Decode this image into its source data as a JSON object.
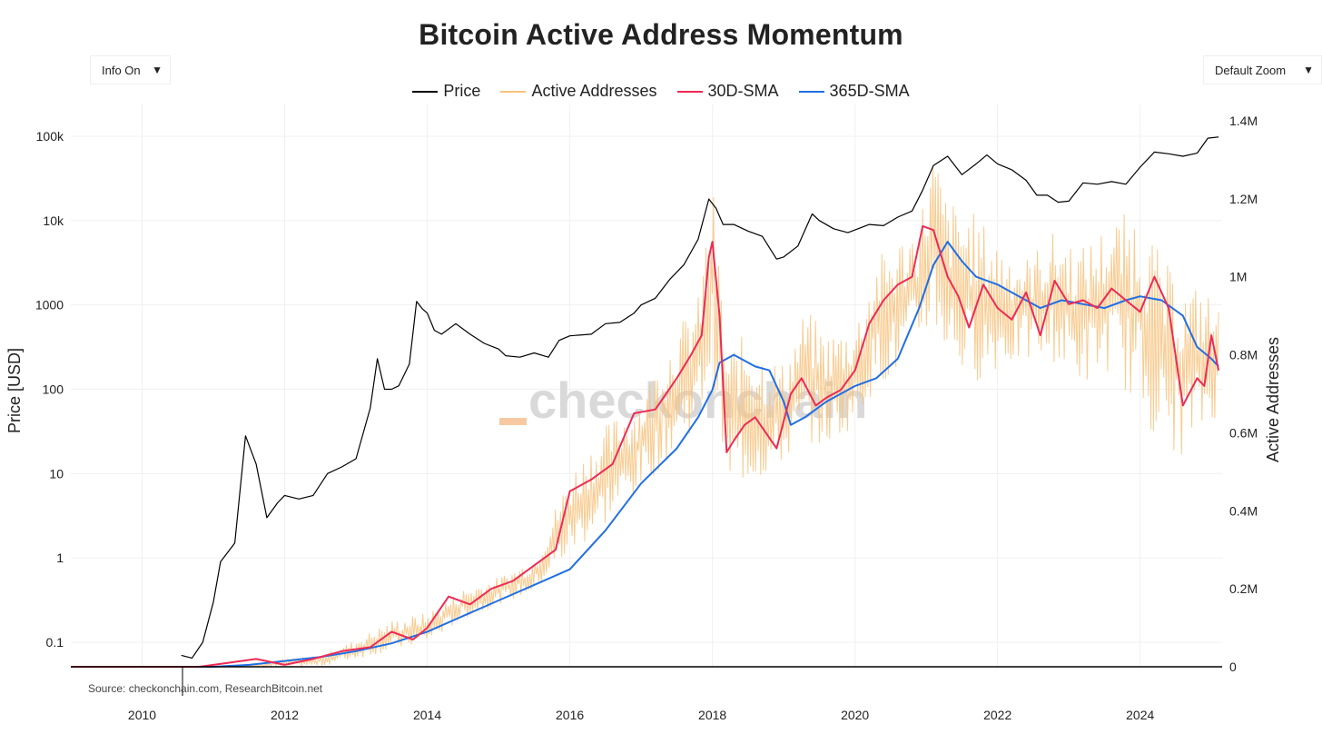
{
  "title": "Bitcoin Active Address Momentum",
  "controls": {
    "info_label": "Info On",
    "zoom_label": "Default Zoom"
  },
  "source": "Source: checkonchain.com, ResearchBitcoin.net",
  "watermark": "checkonchain",
  "colors": {
    "price": "#000000",
    "active_addresses": "#f7c27d",
    "sma30": "#ee2a55",
    "sma365": "#1f6fe5",
    "watermark_accent": "#f7c9a2"
  },
  "chart_data": {
    "type": "line",
    "legend_position": "top-center",
    "grid": true,
    "x_axis": {
      "ticks": [
        "2010",
        "2012",
        "2014",
        "2016",
        "2018",
        "2020",
        "2022",
        "2024"
      ],
      "range": [
        2009.0,
        2025.15
      ]
    },
    "y_left": {
      "label": "Price [USD]",
      "scale": "log",
      "range": [
        0.05,
        200000
      ],
      "ticks": [
        {
          "value": 0.1,
          "label": "0.1"
        },
        {
          "value": 1,
          "label": "1"
        },
        {
          "value": 10,
          "label": "10"
        },
        {
          "value": 100,
          "label": "100"
        },
        {
          "value": 1000,
          "label": "1000"
        },
        {
          "value": 10000,
          "label": "10k"
        },
        {
          "value": 100000,
          "label": "100k"
        }
      ]
    },
    "y_right": {
      "label": "Active Addresses",
      "scale": "linear",
      "range": [
        0,
        1400000
      ],
      "ticks": [
        {
          "value": 0,
          "label": "0"
        },
        {
          "value": 200000,
          "label": "0.2M"
        },
        {
          "value": 400000,
          "label": "0.4M"
        },
        {
          "value": 600000,
          "label": "0.6M"
        },
        {
          "value": 800000,
          "label": "0.8M"
        },
        {
          "value": 1000000,
          "label": "1M"
        },
        {
          "value": 1200000,
          "label": "1.2M"
        },
        {
          "value": 1400000,
          "label": "1.4M"
        }
      ]
    },
    "series": [
      {
        "name": "Price",
        "axis": "left",
        "color": "#000000",
        "width": 1.2,
        "x": [
          2010.55,
          2010.7,
          2010.85,
          2011.0,
          2011.1,
          2011.3,
          2011.45,
          2011.6,
          2011.75,
          2011.9,
          2012.0,
          2012.2,
          2012.4,
          2012.6,
          2012.8,
          2013.0,
          2013.2,
          2013.3,
          2013.4,
          2013.5,
          2013.6,
          2013.75,
          2013.85,
          2013.93,
          2014.0,
          2014.1,
          2014.2,
          2014.4,
          2014.6,
          2014.8,
          2015.0,
          2015.1,
          2015.3,
          2015.5,
          2015.7,
          2015.85,
          2016.0,
          2016.3,
          2016.5,
          2016.7,
          2016.9,
          2017.0,
          2017.2,
          2017.4,
          2017.6,
          2017.8,
          2017.95,
          2018.05,
          2018.15,
          2018.3,
          2018.5,
          2018.7,
          2018.9,
          2019.0,
          2019.2,
          2019.4,
          2019.5,
          2019.7,
          2019.9,
          2020.2,
          2020.4,
          2020.6,
          2020.8,
          2020.95,
          2021.1,
          2021.3,
          2021.5,
          2021.7,
          2021.85,
          2022.0,
          2022.2,
          2022.4,
          2022.55,
          2022.7,
          2022.85,
          2023.0,
          2023.2,
          2023.4,
          2023.6,
          2023.8,
          2024.0,
          2024.2,
          2024.4,
          2024.6,
          2024.8,
          2024.95,
          2025.1
        ],
        "y": [
          0.07,
          0.065,
          0.1,
          0.3,
          0.9,
          1.5,
          28,
          13,
          3.0,
          4.5,
          5.5,
          5.0,
          5.5,
          10,
          12,
          15,
          60,
          230,
          100,
          100,
          110,
          200,
          1100,
          900,
          800,
          500,
          450,
          600,
          450,
          350,
          300,
          250,
          240,
          270,
          240,
          380,
          430,
          450,
          600,
          620,
          800,
          1000,
          1200,
          2000,
          3000,
          6000,
          18000,
          14000,
          9000,
          9000,
          7500,
          6500,
          3500,
          3700,
          5000,
          12000,
          10000,
          8000,
          7200,
          9000,
          8700,
          11000,
          13000,
          23000,
          45000,
          58000,
          35000,
          47000,
          60000,
          47000,
          40000,
          30000,
          20000,
          20000,
          16500,
          17000,
          28000,
          27000,
          29000,
          27000,
          43000,
          65000,
          62000,
          58000,
          63000,
          95000,
          98000
        ]
      },
      {
        "name": "365D-SMA",
        "axis": "right",
        "color": "#1f6fe5",
        "width": 2,
        "x": [
          2009.0,
          2010.0,
          2011.0,
          2011.5,
          2012.0,
          2012.5,
          2013.0,
          2013.5,
          2014.0,
          2014.5,
          2015.0,
          2015.5,
          2016.0,
          2016.5,
          2017.0,
          2017.5,
          2017.8,
          2018.0,
          2018.1,
          2018.3,
          2018.6,
          2018.8,
          2019.0,
          2019.1,
          2019.3,
          2019.6,
          2019.8,
          2020.0,
          2020.3,
          2020.6,
          2020.9,
          2021.1,
          2021.3,
          2021.5,
          2021.7,
          2022.0,
          2022.3,
          2022.6,
          2022.9,
          2023.2,
          2023.5,
          2023.8,
          2024.0,
          2024.3,
          2024.6,
          2024.8,
          2025.0,
          2025.1
        ],
        "y": [
          0,
          0,
          0,
          5000,
          15000,
          25000,
          40000,
          60000,
          90000,
          130000,
          170000,
          210000,
          250000,
          350000,
          470000,
          560000,
          640000,
          710000,
          780000,
          800000,
          770000,
          760000,
          680000,
          620000,
          640000,
          680000,
          700000,
          720000,
          740000,
          790000,
          920000,
          1030000,
          1090000,
          1040000,
          1000000,
          980000,
          950000,
          920000,
          940000,
          930000,
          920000,
          940000,
          950000,
          940000,
          900000,
          820000,
          790000,
          770000
        ]
      },
      {
        "name": "30D-SMA",
        "axis": "right",
        "color": "#ee2a55",
        "width": 2,
        "x": [
          2009.0,
          2010.8,
          2011.2,
          2011.6,
          2012.0,
          2012.4,
          2012.8,
          2013.2,
          2013.5,
          2013.8,
          2014.0,
          2014.3,
          2014.6,
          2014.9,
          2015.2,
          2015.5,
          2015.8,
          2016.0,
          2016.3,
          2016.6,
          2016.9,
          2017.2,
          2017.5,
          2017.7,
          2017.85,
          2017.95,
          2018.0,
          2018.1,
          2018.2,
          2018.3,
          2018.45,
          2018.6,
          2018.75,
          2018.9,
          2019.1,
          2019.25,
          2019.45,
          2019.6,
          2019.8,
          2020.0,
          2020.2,
          2020.4,
          2020.6,
          2020.8,
          2020.95,
          2021.1,
          2021.3,
          2021.45,
          2021.6,
          2021.8,
          2022.0,
          2022.2,
          2022.4,
          2022.6,
          2022.8,
          2023.0,
          2023.2,
          2023.4,
          2023.6,
          2023.8,
          2024.0,
          2024.2,
          2024.4,
          2024.6,
          2024.8,
          2024.9,
          2025.0,
          2025.1
        ],
        "y": [
          0,
          0,
          10000,
          20000,
          5000,
          20000,
          40000,
          50000,
          90000,
          70000,
          100000,
          180000,
          160000,
          200000,
          220000,
          260000,
          300000,
          450000,
          480000,
          520000,
          650000,
          660000,
          740000,
          800000,
          850000,
          1050000,
          1090000,
          900000,
          550000,
          580000,
          620000,
          640000,
          600000,
          560000,
          700000,
          740000,
          670000,
          690000,
          710000,
          760000,
          880000,
          940000,
          980000,
          1000000,
          1130000,
          1120000,
          1000000,
          950000,
          870000,
          980000,
          920000,
          890000,
          960000,
          850000,
          990000,
          930000,
          940000,
          920000,
          970000,
          940000,
          910000,
          1000000,
          920000,
          670000,
          740000,
          720000,
          850000,
          760000
        ]
      }
    ],
    "active_addresses_band": {
      "name": "Active Addresses",
      "axis": "right",
      "color": "#f7c27d",
      "x": [
        2009.0,
        2011.0,
        2011.5,
        2012.0,
        2012.5,
        2013.0,
        2013.5,
        2014.0,
        2014.5,
        2015.0,
        2015.5,
        2016.0,
        2016.5,
        2017.0,
        2017.5,
        2017.8,
        2018.0,
        2018.2,
        2018.5,
        2018.8,
        2019.0,
        2019.3,
        2019.6,
        2020.0,
        2020.3,
        2020.6,
        2020.9,
        2021.1,
        2021.3,
        2021.6,
        2022.0,
        2022.4,
        2022.8,
        2023.2,
        2023.6,
        2024.0,
        2024.3,
        2024.6,
        2024.9,
        2025.1
      ],
      "low": [
        0,
        0,
        0,
        0,
        0,
        20000,
        40000,
        60000,
        120000,
        160000,
        190000,
        280000,
        360000,
        450000,
        560000,
        620000,
        750000,
        450000,
        470000,
        480000,
        520000,
        580000,
        560000,
        620000,
        720000,
        740000,
        820000,
        870000,
        780000,
        720000,
        760000,
        780000,
        780000,
        720000,
        760000,
        650000,
        560000,
        540000,
        600000,
        650000
      ],
      "high": [
        0,
        0,
        5000,
        20000,
        30000,
        70000,
        120000,
        140000,
        200000,
        230000,
        280000,
        500000,
        620000,
        700000,
        870000,
        950000,
        1250000,
        820000,
        860000,
        800000,
        780000,
        920000,
        860000,
        880000,
        1050000,
        1100000,
        1150000,
        1340000,
        1200000,
        1180000,
        1100000,
        1050000,
        1120000,
        1080000,
        1150000,
        1180000,
        1050000,
        980000,
        980000,
        920000
      ]
    }
  }
}
